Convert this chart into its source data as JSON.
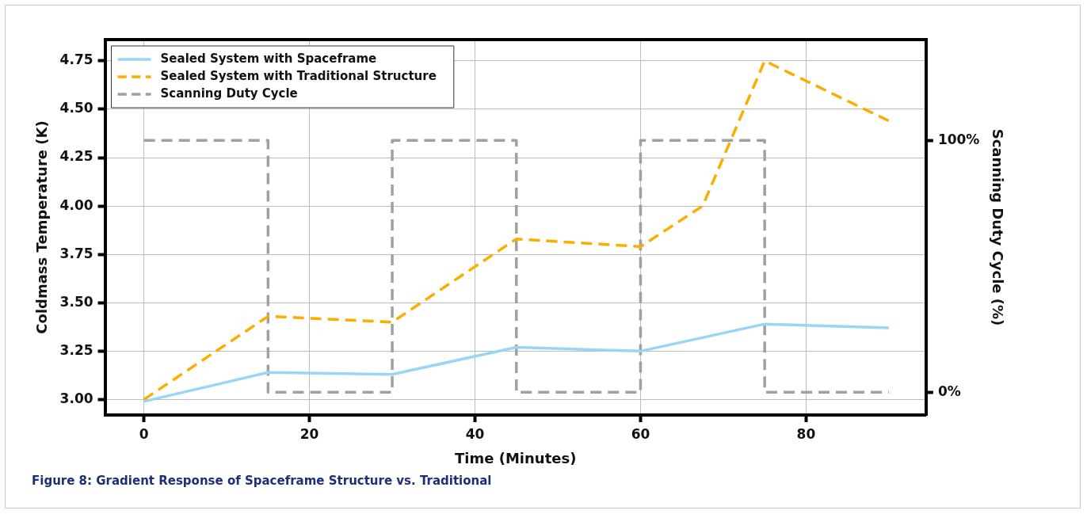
{
  "chart_data": {
    "type": "line",
    "xlabel": "Time (Minutes)",
    "ylabel": "Coldmass Temperature (K)",
    "y2label": "Scanning Duty Cycle (%)",
    "xlim": [
      -4.7,
      94.5
    ],
    "xticks": [
      0,
      20,
      40,
      60,
      80
    ],
    "ylim": [
      2.92,
      4.86
    ],
    "yticks": [
      {
        "value": 3,
        "label": "3.00"
      },
      {
        "value": 3.25,
        "label": "3.25"
      },
      {
        "value": 3.5,
        "label": "3.50"
      },
      {
        "value": 3.75,
        "label": "3.75"
      },
      {
        "value": 4,
        "label": "4.00"
      },
      {
        "value": 4.25,
        "label": "4.25"
      },
      {
        "value": 4.5,
        "label": "4.50"
      },
      {
        "value": 4.75,
        "label": "4.75"
      }
    ],
    "y2lim": [
      -9,
      140
    ],
    "y2ticks": [
      {
        "value": 0,
        "label": "0%"
      },
      {
        "value": 100,
        "label": "100%"
      }
    ],
    "grid": true,
    "legend": "top left",
    "marker": "none",
    "series": [
      {
        "name": "Sealed System with Spaceframe",
        "color": "#99d5f5",
        "line_style": "solid",
        "x": [
          0,
          15,
          30,
          45,
          60,
          75,
          90
        ],
        "values": [
          2.99,
          3.14,
          3.13,
          3.27,
          3.25,
          3.39,
          3.37
        ]
      },
      {
        "name": "Sealed System with Traditional Structure",
        "color": "#fbae00",
        "line_style": "dashed",
        "x": [
          0,
          15,
          30,
          45,
          60,
          67.5,
          75,
          90
        ],
        "values": [
          3.0,
          3.43,
          3.4,
          3.83,
          3.79,
          4.0,
          4.75,
          4.44
        ]
      },
      {
        "name": "Scanning Duty Cycle",
        "color": "#a0a0a0",
        "line_style": "dashed",
        "axis": "y2",
        "x": [
          0,
          15,
          15,
          30,
          30,
          45,
          45,
          60,
          60,
          75,
          75,
          90
        ],
        "values": [
          100,
          100,
          0,
          0,
          100,
          100,
          0,
          0,
          100,
          100,
          0,
          0
        ]
      }
    ],
    "annotations": [
      "Figure 8: Gradient Response of Spaceframe Structure vs. Traditional"
    ]
  }
}
